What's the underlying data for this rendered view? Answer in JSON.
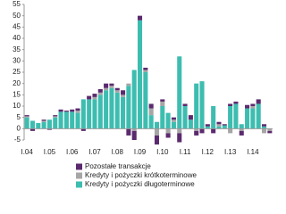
{
  "chart_data": {
    "type": "bar",
    "stacked": true,
    "categories": [
      "I.04",
      null,
      null,
      null,
      "I.05",
      null,
      null,
      null,
      "I.06",
      null,
      null,
      null,
      "I.07",
      null,
      null,
      null,
      "I.08",
      null,
      null,
      null,
      "I.09",
      null,
      null,
      null,
      "I.10",
      null,
      null,
      null,
      "I.11",
      null,
      null,
      null,
      "I.12",
      null,
      null,
      null,
      "I.13",
      null,
      null,
      null,
      "I.14",
      null,
      null,
      null
    ],
    "series": [
      {
        "name": "Kredyty i pożyczki długoterminowe",
        "color": "#3dbdb0",
        "values": [
          5,
          3.5,
          2.5,
          3,
          4,
          5,
          7.5,
          7.5,
          7.5,
          7,
          13,
          13,
          13,
          15,
          17,
          18,
          16,
          14,
          19,
          26,
          48,
          25,
          6,
          3,
          10,
          7,
          3,
          32,
          10,
          4,
          20,
          21,
          1,
          10,
          1,
          1.5,
          10,
          11,
          2,
          9,
          9,
          11,
          1,
          0
        ]
      },
      {
        "name": "Kredyty i pożyczki krótkoterminowe",
        "color": "#a6a6a6",
        "values": [
          0.5,
          0,
          0,
          0.5,
          0,
          0.5,
          0,
          0,
          0,
          1,
          0,
          0,
          1,
          1,
          1,
          1,
          1,
          1,
          1,
          -1,
          0,
          1,
          3,
          -3,
          2,
          -2,
          1,
          -2,
          0,
          0,
          -1,
          0,
          0,
          0,
          1,
          0,
          -2,
          0,
          -1,
          0,
          1,
          0,
          -2,
          -1
        ]
      },
      {
        "name": "Pozostałe transakcje",
        "color": "#5b2a6e",
        "values": [
          0.5,
          -1,
          0,
          0.5,
          -0.5,
          0.5,
          1,
          0.5,
          1,
          1,
          -1,
          1.5,
          1.5,
          1.5,
          2,
          1,
          1,
          2,
          -3,
          -4,
          2,
          1,
          2,
          -4,
          1,
          -2,
          1,
          -4,
          1,
          2,
          -2,
          -2,
          1,
          -2,
          1,
          0.5,
          1,
          1,
          -2,
          1.5,
          1,
          2,
          1,
          -1
        ]
      }
    ],
    "legend_order": [
      2,
      1,
      0
    ],
    "ylim": [
      -5,
      55
    ],
    "yticks": [
      -5,
      0,
      5,
      10,
      15,
      20,
      25,
      30,
      35,
      40,
      45,
      50,
      55
    ],
    "grid": false
  }
}
